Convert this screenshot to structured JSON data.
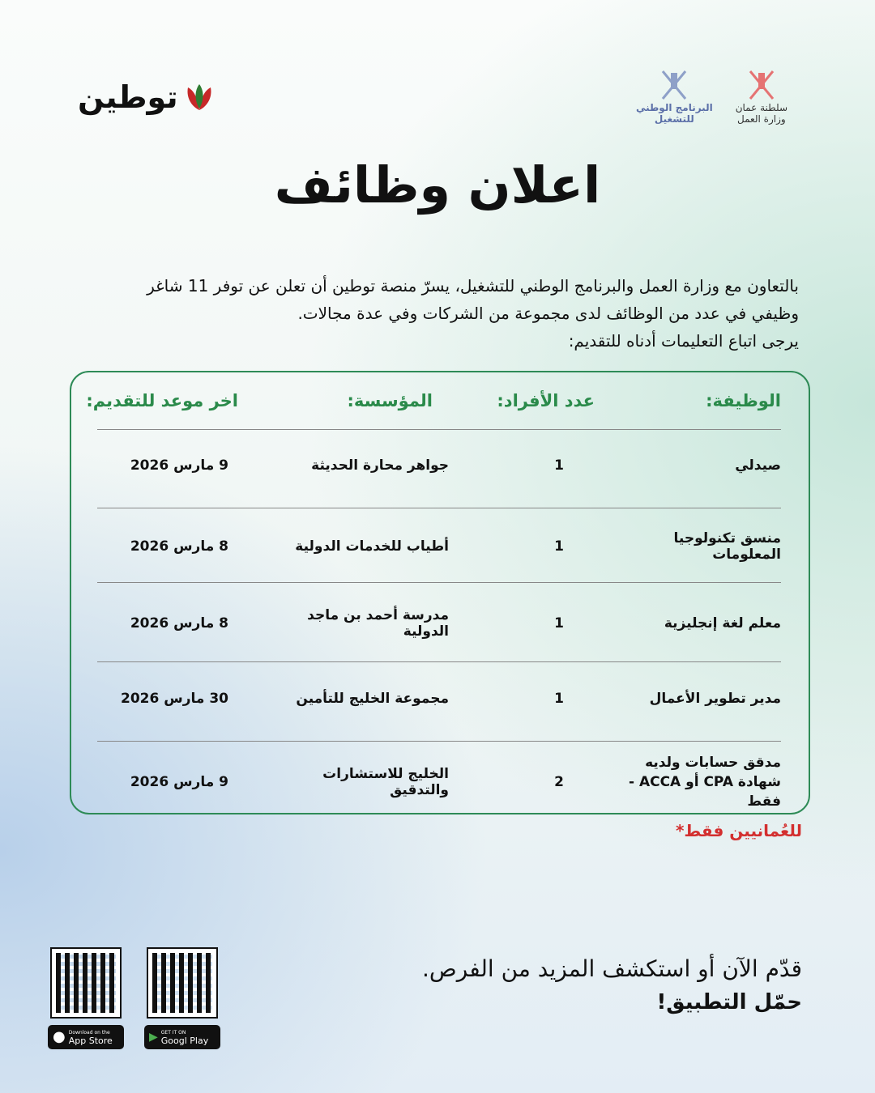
{
  "brand": {
    "name": "توطين"
  },
  "gov": {
    "program": [
      "البرنامج الوطني",
      "للتشغيل"
    ],
    "ministry": [
      "سلطنة عمان",
      "وزارة العمل"
    ]
  },
  "title": "اعلان وظائف",
  "intro": [
    "بالتعاون مع وزارة العمل والبرنامج الوطني للتشغيل، يسرّ منصة توطين أن تعلن عن توفر 11 شاغر",
    "وظيفي في عدد من الوظائف لدى مجموعة من الشركات وفي عدة مجالات.",
    "يرجى اتباع التعليمات أدناه للتقديم:"
  ],
  "table": {
    "headers": [
      "الوظيفة:",
      "عدد الأفراد:",
      "المؤسسة:",
      "اخر موعد للتقديم:"
    ],
    "rows": [
      [
        "صيدلي",
        "1",
        "جواهر محارة الحديثة",
        "9 مارس 2026"
      ],
      [
        "منسق تكنولوجيا المعلومات",
        "1",
        "أطياب للخدمات الدولية",
        "8 مارس 2026"
      ],
      [
        "معلم لغة إنجليزية",
        "1",
        "مدرسة أحمد بن ماجد الدولية",
        "8 مارس 2026"
      ],
      [
        "مدير تطوير الأعمال",
        "1",
        "مجموعة الخليج للتأمين",
        "30 مارس 2026"
      ],
      [
        "مدقق حسابات ولديه شهادة CPA أو ACCA - فقط",
        "2",
        "الخليج للاستشارات والتدقيق",
        "9 مارس 2026"
      ]
    ]
  },
  "note": "للعُمانيين فقط*",
  "cta": {
    "line1": "قدّم الآن أو استكشف المزيد من الفرص.",
    "line2": "حمّل التطبيق!"
  },
  "stores": {
    "apple": {
      "small": "Download on the",
      "big": "App Store"
    },
    "google": {
      "small": "GET IT ON",
      "big": "Googl  Play"
    }
  },
  "colors": {
    "accent": "#2e8b57",
    "note": "#d32f2f"
  }
}
